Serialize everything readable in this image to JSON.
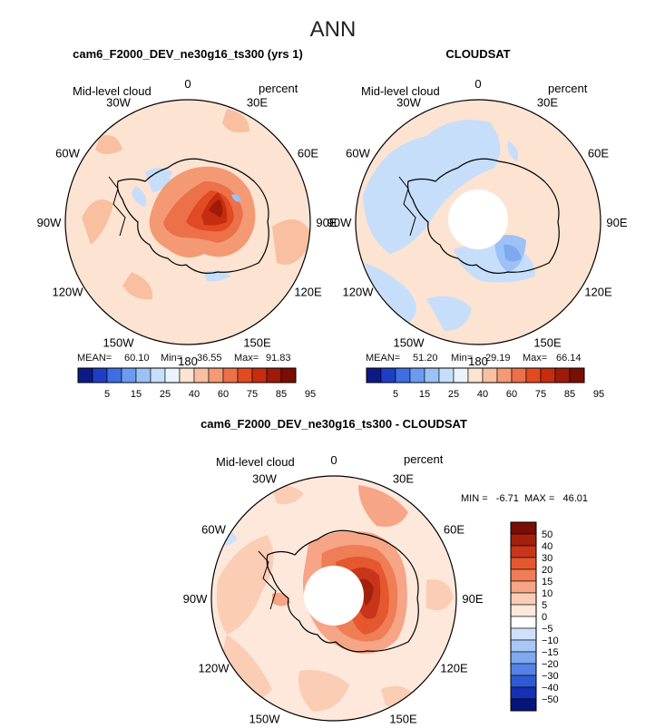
{
  "figure": {
    "season": "ANN"
  },
  "panels": [
    {
      "title": "cam6_F2000_DEV_ne30g16_ts300 (yrs 1)",
      "left_label": "Mid-level cloud",
      "right_label": "percent",
      "stats": {
        "mean_label": "MEAN=",
        "mean": "60.10",
        "min_label": "Min=",
        "min": "36.55",
        "max_label": "Max=",
        "max": "91.83"
      },
      "colorbar_ticks": [
        "5",
        "15",
        "25",
        "40",
        "60",
        "75",
        "85",
        "95"
      ],
      "has_pole_hole": false
    },
    {
      "title": "CLOUDSAT",
      "left_label": "Mid-level cloud",
      "right_label": "percent",
      "stats": {
        "mean_label": "MEAN=",
        "mean": "51.20",
        "min_label": "Min=",
        "min": "29.19",
        "max_label": "Max=",
        "max": "66.14"
      },
      "colorbar_ticks": [
        "5",
        "15",
        "25",
        "40",
        "60",
        "75",
        "85",
        "95"
      ],
      "has_pole_hole": true
    },
    {
      "title": "cam6_F2000_DEV_ne30g16_ts300 - CLOUDSAT",
      "left_label": "Mid-level cloud",
      "right_label": "percent",
      "minmax": "MIN =   -6.71  MAX =   46.01",
      "colorbar_ticks": [
        "50",
        "40",
        "30",
        "20",
        "15",
        "10",
        "5",
        "0",
        "−5",
        "−10",
        "−15",
        "−20",
        "−30",
        "−40",
        "−50"
      ],
      "has_pole_hole": true
    }
  ],
  "lon_labels": [
    "0",
    "30E",
    "60E",
    "90E",
    "120E",
    "150E",
    "180",
    "150W",
    "120W",
    "90W",
    "60W",
    "30W"
  ],
  "abs_colors": [
    "#0d1a86",
    "#1e3ec4",
    "#3d6fe3",
    "#6b9bf0",
    "#9cc1f5",
    "#c6defa",
    "#eaf3fd",
    "#fde3d2",
    "#f8c0a0",
    "#f39a75",
    "#ec7048",
    "#e14a22",
    "#c62d10",
    "#9f1a08",
    "#7a0e04"
  ],
  "diff_colors": [
    "#7a0e04",
    "#a3210c",
    "#c8351a",
    "#e4572f",
    "#ef7d55",
    "#f6a586",
    "#fbcdb5",
    "#fde8db",
    "#ffffff",
    "#cfe0f9",
    "#a9c8f5",
    "#7fa9ee",
    "#5482e6",
    "#2f5ad6",
    "#1530b0",
    "#07147a"
  ]
}
